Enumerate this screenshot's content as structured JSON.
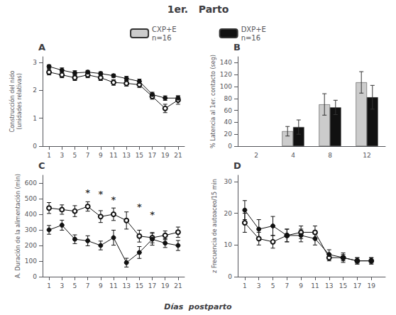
{
  "title": "1er.   Parto",
  "xlabel": "Días  postparto",
  "legend": "top",
  "chart_data": [
    {
      "type": "line",
      "title": "A",
      "ylabel": "Construcción del nido\n(unidades relativas)",
      "x": [
        1,
        3,
        5,
        7,
        9,
        11,
        13,
        15,
        17,
        19,
        21
      ],
      "xlim": [
        0,
        22
      ],
      "xticks": [
        1,
        3,
        5,
        7,
        9,
        11,
        13,
        15,
        17,
        19,
        21
      ],
      "ylim": [
        0,
        3.2
      ],
      "yticks": [
        0,
        1,
        2,
        3
      ],
      "grid": false,
      "series": [
        {
          "name": "CXP+E\nn=16",
          "color": "#111111",
          "marker": "emptyCircle",
          "values": [
            2.65,
            2.55,
            2.45,
            2.55,
            2.45,
            2.28,
            2.25,
            2.2,
            1.78,
            1.35,
            1.65
          ],
          "errors": [
            0.1,
            0.1,
            0.1,
            0.1,
            0.1,
            0.1,
            0.1,
            0.1,
            0.1,
            0.15,
            0.15
          ]
        },
        {
          "name": "DXP+E\nn=16",
          "color": "#111111",
          "marker": "circle",
          "values": [
            2.85,
            2.72,
            2.62,
            2.65,
            2.6,
            2.52,
            2.42,
            2.32,
            1.85,
            1.72,
            1.72
          ],
          "errors": [
            0.06,
            0.08,
            0.08,
            0.06,
            0.06,
            0.06,
            0.08,
            0.08,
            0.08,
            0.08,
            0.08
          ]
        }
      ]
    },
    {
      "type": "bar",
      "title": "B",
      "ylabel": "% Latencia al 1er. contacto (seg)",
      "categories": [
        "2",
        "4",
        "8",
        "12"
      ],
      "ylim": [
        0,
        150
      ],
      "yticks": [
        0,
        20,
        40,
        60,
        80,
        100,
        120,
        140
      ],
      "grid": false,
      "series": [
        {
          "name": "CXP+E\nn=16",
          "color": "#cccccc",
          "values": [
            null,
            25,
            70,
            107
          ],
          "errors": [
            null,
            8,
            18,
            18
          ]
        },
        {
          "name": "DXP+E\nn=16",
          "color": "#111111",
          "values": [
            null,
            32,
            65,
            82
          ],
          "errors": [
            null,
            12,
            12,
            20
          ]
        }
      ]
    },
    {
      "type": "line",
      "title": "C",
      "ylabel": "A. Duración de la alimentación (min)",
      "x": [
        1,
        3,
        5,
        7,
        9,
        11,
        13,
        15,
        17,
        19,
        21
      ],
      "xlim": [
        0,
        22
      ],
      "xticks": [
        1,
        3,
        5,
        7,
        9,
        11,
        13,
        15,
        17,
        19,
        21
      ],
      "ylim": [
        0,
        650
      ],
      "yticks": [
        0,
        100,
        200,
        300,
        400,
        500,
        600
      ],
      "grid": false,
      "series": [
        {
          "name": "CXP+E\nn=16",
          "color": "#111111",
          "marker": "emptyCircle",
          "values": [
            440,
            430,
            420,
            450,
            385,
            400,
            360,
            260,
            250,
            265,
            285
          ],
          "errors": [
            35,
            30,
            35,
            30,
            38,
            40,
            55,
            38,
            33,
            28,
            33
          ]
        },
        {
          "name": "DXP+E\nn=16",
          "color": "#111111",
          "marker": "circle",
          "values": [
            300,
            330,
            240,
            230,
            200,
            250,
            90,
            155,
            240,
            215,
            200
          ],
          "errors": [
            28,
            32,
            28,
            32,
            28,
            48,
            28,
            38,
            38,
            28,
            32
          ]
        }
      ],
      "annotations": [
        {
          "x": 7,
          "y": 510,
          "text": "*"
        },
        {
          "x": 9,
          "y": 500,
          "text": "*"
        },
        {
          "x": 11,
          "y": 465,
          "text": "*"
        },
        {
          "x": 15,
          "y": 420,
          "text": "*"
        },
        {
          "x": 17,
          "y": 370,
          "text": "*"
        }
      ]
    },
    {
      "type": "line",
      "title": "D",
      "ylabel": "z Frecuencia de autoaceo/15 min",
      "x": [
        1,
        3,
        5,
        7,
        9,
        11,
        13,
        15,
        17,
        19
      ],
      "xlim": [
        0,
        21
      ],
      "xticks": [
        1,
        3,
        5,
        7,
        9,
        11,
        13,
        15,
        17,
        19
      ],
      "ylim": [
        0,
        32
      ],
      "yticks": [
        0,
        10,
        20,
        30
      ],
      "grid": false,
      "series": [
        {
          "name": "CXP+E\nn=16",
          "color": "#111111",
          "marker": "emptyCircle",
          "values": [
            17,
            12,
            11,
            13,
            14,
            14,
            6,
            6,
            5,
            5
          ],
          "errors": [
            3,
            2,
            2,
            2,
            2,
            2,
            1,
            1,
            1,
            1
          ]
        },
        {
          "name": "DXP+E\nn=16",
          "color": "#111111",
          "marker": "circle",
          "values": [
            21,
            15,
            16,
            13,
            13,
            12,
            7,
            6,
            5,
            5
          ],
          "errors": [
            3,
            3,
            3,
            2,
            2,
            2,
            1.5,
            1.5,
            1,
            1
          ]
        }
      ]
    }
  ]
}
